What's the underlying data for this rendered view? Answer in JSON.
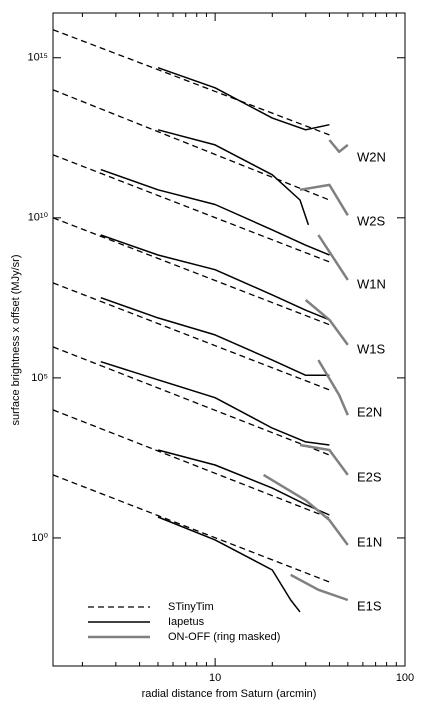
{
  "chart_data": {
    "type": "line",
    "xlabel": "radial distance from Saturn (arcmin)",
    "ylabel": "surface brightness x offset (MJy/sr)",
    "xlog": true,
    "ylog": true,
    "xlim": [
      1.4,
      100
    ],
    "ylim": [
      0.0001,
      25000000000000000
    ],
    "xticks": [
      10,
      100
    ],
    "xminorticks": [
      2,
      3,
      4,
      5,
      6,
      7,
      8,
      9,
      20,
      30,
      40,
      50,
      60,
      70,
      80,
      90
    ],
    "yticks": [
      {
        "value": 1,
        "label": "10⁰"
      },
      {
        "value": 100000,
        "label": "10⁵"
      },
      {
        "value": 10000000000,
        "label": "10¹⁰"
      },
      {
        "value": 1000000000000000,
        "label": "10¹⁵"
      }
    ],
    "legend": "lower left",
    "series": [
      {
        "name": "STinyTim",
        "color": "#000000",
        "dash": "6,4",
        "width": 1.3
      },
      {
        "name": "Iapetus",
        "color": "#000000",
        "dash": "none",
        "width": 1.5
      },
      {
        "name": "ON-OFF (ring masked)",
        "color": "#808080",
        "dash": "none",
        "width": 2.5
      }
    ],
    "profiles": [
      {
        "label": "W2N",
        "lines": [
          {
            "x": [
              1.4,
              40
            ],
            "values": [
              7500000000000000.0,
              3900000000000.0
            ]
          },
          {
            "x": [
              5,
              10,
              20,
              30,
              40
            ],
            "values": [
              490000000000000.0,
              115000000000000.0,
              13000000000000.0,
              5600000000000.0,
              8100000000000.0
            ]
          },
          {
            "x": [
              40,
              45,
              50
            ],
            "values": [
              2700000000000.0,
              1150000000000.0,
              1900000000000.0
            ]
          }
        ]
      },
      {
        "label": "W2S",
        "lines": [
          {
            "x": [
              1.4,
              40
            ],
            "values": [
              100000000000000.0,
              36000000000.0
            ]
          },
          {
            "x": [
              5,
              10,
              20,
              28,
              31
            ],
            "values": [
              5600000000000.0,
              1900000000000.0,
              220000000000.0,
              36000000000.0,
              6000000000.0
            ]
          },
          {
            "x": [
              28,
              40,
              50
            ],
            "values": [
              75000000000.0,
              107000000000.0,
              12000000000.0
            ]
          }
        ]
      },
      {
        "label": "W1N",
        "lines": [
          {
            "x": [
              1.4,
              40
            ],
            "values": [
              930000000000.0,
              420000000.0
            ]
          },
          {
            "x": [
              2.5,
              5,
              10,
              20,
              30,
              40
            ],
            "values": [
              320000000000.0,
              75000000000.0,
              26000000000.0,
              4200000000.0,
              1400000000.0,
              690000000.0
            ]
          },
          {
            "x": [
              35,
              50
            ],
            "values": [
              2900000000.0,
              115000000.0
            ]
          }
        ]
      },
      {
        "label": "W1S",
        "lines": [
          {
            "x": [
              1.4,
              40
            ],
            "values": [
              10000000000.0,
              4600000.0
            ]
          },
          {
            "x": [
              2.5,
              5,
              10,
              20,
              30,
              40
            ],
            "values": [
              2900000000.0,
              690000000.0,
              240000000.0,
              39000000.0,
              13000000.0,
              6500000.0
            ]
          },
          {
            "x": [
              30,
              40,
              50
            ],
            "values": [
              27000000.0,
              6500000.0,
              1070000.0
            ]
          }
        ]
      },
      {
        "label": "E2N",
        "lines": [
          {
            "x": [
              1.4,
              40
            ],
            "values": [
              93000000.0,
              42000.0
            ]
          },
          {
            "x": [
              2.5,
              5,
              10,
              20,
              30,
              40
            ],
            "values": [
              32000000.0,
              7500000.0,
              2200000.0,
              360000.0,
              120000.0,
              120000.0
            ]
          },
          {
            "x": [
              35,
              45,
              50
            ],
            "values": [
              360000.0,
              29000.0,
              6900.0
            ]
          }
        ]
      },
      {
        "label": "E2S",
        "lines": [
          {
            "x": [
              1.4,
              40
            ],
            "values": [
              930000.0,
              390
            ]
          },
          {
            "x": [
              2.5,
              5,
              10,
              20,
              30,
              40
            ],
            "values": [
              320000.0,
              87000.0,
              24000.0,
              2700,
              1000,
              800
            ]
          },
          {
            "x": [
              28,
              40,
              50
            ],
            "values": [
              800,
              560,
              93
            ]
          }
        ]
      },
      {
        "label": "E1N",
        "lines": [
          {
            "x": [
              1.4,
              40
            ],
            "values": [
              10000,
              4.2
            ]
          },
          {
            "x": [
              5,
              10,
              20,
              30,
              40
            ],
            "values": [
              560,
              190,
              36,
              11,
              5.2
            ]
          },
          {
            "x": [
              18,
              30,
              40,
              50
            ],
            "values": [
              93,
              15,
              3.6,
              0.6
            ]
          }
        ]
      },
      {
        "label": "E1S",
        "lines": [
          {
            "x": [
              1.4,
              40
            ],
            "values": [
              93,
              0.042
            ]
          },
          {
            "x": [
              5,
              10,
              20,
              25,
              28
            ],
            "values": [
              4.5,
              0.87,
              0.1,
              0.0115,
              0.0049
            ]
          },
          {
            "x": [
              25,
              35,
              50
            ],
            "values": [
              0.07,
              0.024,
              0.0115
            ]
          }
        ]
      }
    ]
  }
}
